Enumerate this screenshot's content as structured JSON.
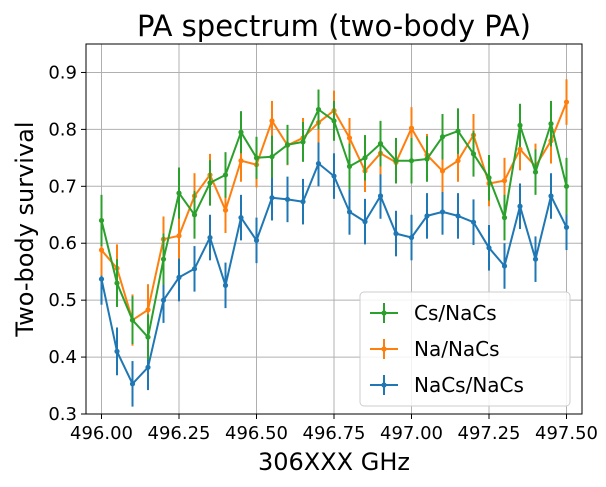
{
  "chart_data": {
    "type": "line",
    "title": "PA spectrum (two-body PA)",
    "xlabel": "306XXX GHz",
    "ylabel": "Two-body survival",
    "xlim": [
      495.95,
      497.55
    ],
    "ylim": [
      0.3,
      0.95
    ],
    "xticks": [
      496.0,
      496.25,
      496.5,
      496.75,
      497.0,
      497.25,
      497.5
    ],
    "xtick_labels": [
      "496.00",
      "496.25",
      "496.50",
      "496.75",
      "497.00",
      "497.25",
      "497.50"
    ],
    "yticks": [
      0.3,
      0.4,
      0.5,
      0.6,
      0.7,
      0.8,
      0.9
    ],
    "ytick_labels": [
      "0.3",
      "0.4",
      "0.5",
      "0.6",
      "0.7",
      "0.8",
      "0.9"
    ],
    "grid": true,
    "legend_position": "bottom-right",
    "x": [
      496.0,
      496.05,
      496.1,
      496.15,
      496.2,
      496.25,
      496.3,
      496.35,
      496.4,
      496.45,
      496.5,
      496.55,
      496.6,
      496.65,
      496.7,
      496.75,
      496.8,
      496.85,
      496.9,
      496.95,
      497.0,
      497.05,
      497.1,
      497.15,
      497.2,
      497.25,
      497.3,
      497.35,
      497.4,
      497.45,
      497.5
    ],
    "series": [
      {
        "name": "Cs/NaCs",
        "color": "#2ca02c",
        "values": [
          0.64,
          0.53,
          0.465,
          0.435,
          0.572,
          0.688,
          0.65,
          0.706,
          0.72,
          0.795,
          0.75,
          0.752,
          0.773,
          0.778,
          0.835,
          0.815,
          0.735,
          0.75,
          0.775,
          0.745,
          0.745,
          0.748,
          0.787,
          0.797,
          0.757,
          0.715,
          0.645,
          0.807,
          0.725,
          0.81,
          0.7
        ],
        "errors": [
          0.045,
          0.042,
          0.042,
          0.04,
          0.045,
          0.045,
          0.042,
          0.04,
          0.04,
          0.037,
          0.037,
          0.037,
          0.035,
          0.035,
          0.035,
          0.035,
          0.04,
          0.04,
          0.04,
          0.04,
          0.04,
          0.04,
          0.04,
          0.04,
          0.04,
          0.04,
          0.04,
          0.038,
          0.04,
          0.04,
          0.05
        ]
      },
      {
        "name": "Na/NaCs",
        "color": "#ff7f0e",
        "values": [
          0.588,
          0.556,
          0.465,
          0.483,
          0.607,
          0.613,
          0.683,
          0.72,
          0.658,
          0.745,
          0.738,
          0.815,
          0.772,
          0.785,
          0.812,
          0.833,
          0.785,
          0.727,
          0.758,
          0.742,
          0.802,
          0.755,
          0.727,
          0.745,
          0.79,
          0.705,
          0.71,
          0.765,
          0.735,
          0.78,
          0.848
        ],
        "errors": [
          0.045,
          0.042,
          0.045,
          0.045,
          0.04,
          0.04,
          0.04,
          0.037,
          0.04,
          0.037,
          0.04,
          0.035,
          0.035,
          0.035,
          0.035,
          0.035,
          0.035,
          0.037,
          0.037,
          0.037,
          0.037,
          0.037,
          0.037,
          0.037,
          0.037,
          0.04,
          0.04,
          0.037,
          0.04,
          0.04,
          0.04
        ]
      },
      {
        "name": "NaCs/NaCs",
        "color": "#1f77b4",
        "values": [
          0.537,
          0.41,
          0.353,
          0.382,
          0.5,
          0.54,
          0.555,
          0.61,
          0.526,
          0.645,
          0.605,
          0.68,
          0.677,
          0.673,
          0.74,
          0.718,
          0.655,
          0.638,
          0.683,
          0.617,
          0.61,
          0.648,
          0.655,
          0.648,
          0.637,
          0.592,
          0.56,
          0.665,
          0.572,
          0.683,
          0.628
        ],
        "errors": [
          0.045,
          0.042,
          0.04,
          0.04,
          0.04,
          0.042,
          0.04,
          0.04,
          0.04,
          0.04,
          0.04,
          0.04,
          0.04,
          0.04,
          0.04,
          0.04,
          0.04,
          0.04,
          0.04,
          0.04,
          0.04,
          0.04,
          0.04,
          0.04,
          0.04,
          0.04,
          0.04,
          0.04,
          0.04,
          0.04,
          0.04
        ]
      }
    ]
  }
}
